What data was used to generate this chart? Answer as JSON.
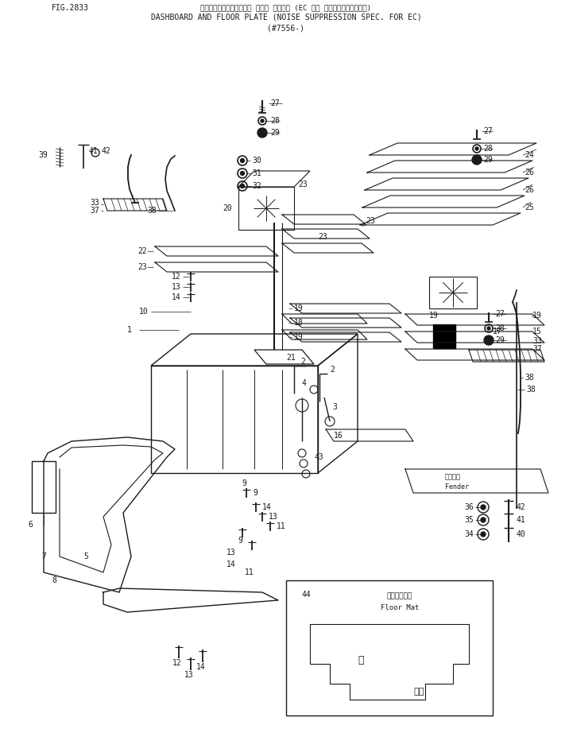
{
  "title_line1": "ダッシュボード・オフィス フロア プレート (EC 仕様 ノイズサプレッション)",
  "title_line2": "DASHBOARD AND FLOOR PLATE (NOISE SUPPRESSION SPEC. FOR EC)",
  "subtitle": "(#7556-)",
  "fig_label": "FIG.2833",
  "background": "#ffffff",
  "line_color": "#1a1a1a",
  "text_color": "#1a1a1a"
}
